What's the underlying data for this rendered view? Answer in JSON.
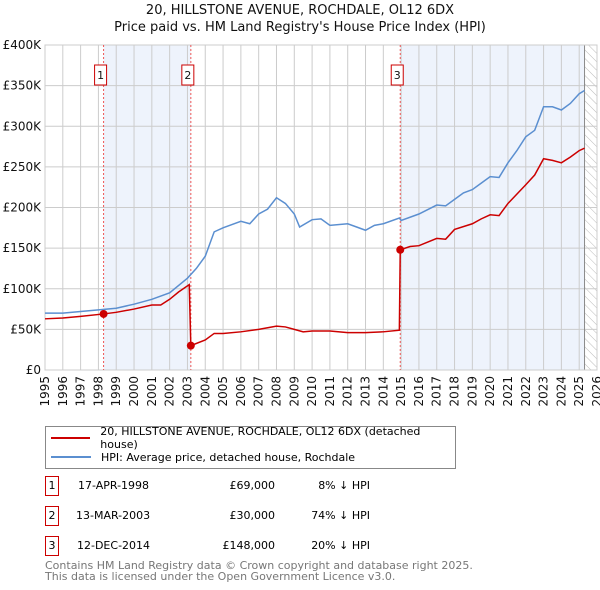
{
  "chart_data": {
    "type": "line",
    "title": "20, HILLSTONE AVENUE, ROCHDALE, OL12 6DX",
    "subtitle": "Price paid vs. HM Land Registry's House Price Index (HPI)",
    "xlim": [
      1995,
      2026
    ],
    "ylim": [
      0,
      400000
    ],
    "x_ticks": [
      "1995",
      "1996",
      "1997",
      "1998",
      "1999",
      "2000",
      "2001",
      "2002",
      "2003",
      "2004",
      "2005",
      "2006",
      "2007",
      "2008",
      "2009",
      "2010",
      "2011",
      "2012",
      "2013",
      "2014",
      "2015",
      "2016",
      "2017",
      "2018",
      "2019",
      "2020",
      "2021",
      "2022",
      "2023",
      "2024",
      "2025",
      "2026"
    ],
    "y_ticks": [
      {
        "v": 0,
        "l": "£0"
      },
      {
        "v": 50000,
        "l": "£50K"
      },
      {
        "v": 100000,
        "l": "£100K"
      },
      {
        "v": 150000,
        "l": "£150K"
      },
      {
        "v": 200000,
        "l": "£200K"
      },
      {
        "v": 250000,
        "l": "£250K"
      },
      {
        "v": 300000,
        "l": "£300K"
      },
      {
        "v": 350000,
        "l": "£350K"
      },
      {
        "v": 400000,
        "l": "£400K"
      }
    ],
    "grid": true,
    "shaded_ranges": [
      [
        1998.29,
        2003.19
      ],
      [
        2014.95,
        2025.3
      ]
    ],
    "data_end": 2025.3,
    "series": [
      {
        "name": "20, HILLSTONE AVENUE, ROCHDALE, OL12 6DX (detached house)",
        "color": "#cc0000",
        "x": [
          1995,
          1996,
          1997,
          1998.29,
          1999,
          2000,
          2001,
          2001.5,
          2002,
          2002.5,
          2003.1,
          2003.19,
          2004,
          2004.5,
          2005,
          2006,
          2007,
          2008,
          2008.5,
          2009,
          2009.5,
          2010,
          2011,
          2012,
          2013,
          2014,
          2014.9,
          2014.95,
          2015.5,
          2016,
          2017,
          2017.5,
          2018,
          2019,
          2019.5,
          2020,
          2020.5,
          2021,
          2022,
          2022.5,
          2023,
          2023.5,
          2024,
          2024.5,
          2025,
          2025.3
        ],
        "y": [
          63000,
          64000,
          66000,
          69000,
          71000,
          75000,
          80000,
          80000,
          87000,
          96000,
          105000,
          30000,
          37000,
          45000,
          45000,
          47000,
          50000,
          54000,
          53000,
          50000,
          47000,
          48000,
          48000,
          46000,
          46000,
          47000,
          49000,
          148000,
          152000,
          153000,
          162000,
          161000,
          173000,
          180000,
          186000,
          191000,
          190000,
          205000,
          228000,
          240000,
          260000,
          258000,
          255000,
          262000,
          270000,
          273000
        ]
      },
      {
        "name": "HPI: Average price, detached house, Rochdale",
        "color": "#5b8fd0",
        "x": [
          1995,
          1996,
          1997,
          1998,
          1999,
          2000,
          2001,
          2002,
          2003,
          2003.5,
          2004,
          2004.5,
          2005,
          2006,
          2006.5,
          2007,
          2007.5,
          2008,
          2008.5,
          2009,
          2009.3,
          2010,
          2010.5,
          2011,
          2012,
          2012.5,
          2013,
          2013.5,
          2014,
          2014.9,
          2015,
          2016,
          2017,
          2017.5,
          2018,
          2018.5,
          2019,
          2019.5,
          2020,
          2020.5,
          2021,
          2021.5,
          2022,
          2022.5,
          2023,
          2023.5,
          2024,
          2024.5,
          2025,
          2025.3
        ],
        "y": [
          70000,
          70000,
          72000,
          74000,
          76000,
          81000,
          87000,
          95000,
          113000,
          125000,
          140000,
          170000,
          175000,
          183000,
          180000,
          192000,
          198000,
          212000,
          205000,
          192000,
          176000,
          185000,
          186000,
          178000,
          180000,
          176000,
          172000,
          178000,
          180000,
          187000,
          184000,
          192000,
          203000,
          202000,
          210000,
          218000,
          222000,
          230000,
          238000,
          237000,
          255000,
          270000,
          287000,
          295000,
          324000,
          324000,
          320000,
          328000,
          340000,
          344000
        ]
      }
    ],
    "sales": [
      {
        "id": "1",
        "x": 1998.29,
        "price": 69000,
        "date": "17-APR-1998",
        "price_label": "£69,000",
        "hpi": "8% ↓ HPI"
      },
      {
        "id": "2",
        "x": 2003.19,
        "price": 30000,
        "date": "13-MAR-2003",
        "price_label": "£30,000",
        "hpi": "74% ↓ HPI"
      },
      {
        "id": "3",
        "x": 2014.95,
        "price": 148000,
        "date": "12-DEC-2014",
        "price_label": "£148,000",
        "hpi": "20% ↓ HPI"
      }
    ],
    "legend_placement": "below"
  },
  "footer": {
    "line1": "Contains HM Land Registry data © Crown copyright and database right 2025.",
    "line2": "This data is licensed under the Open Government Licence v3.0."
  }
}
